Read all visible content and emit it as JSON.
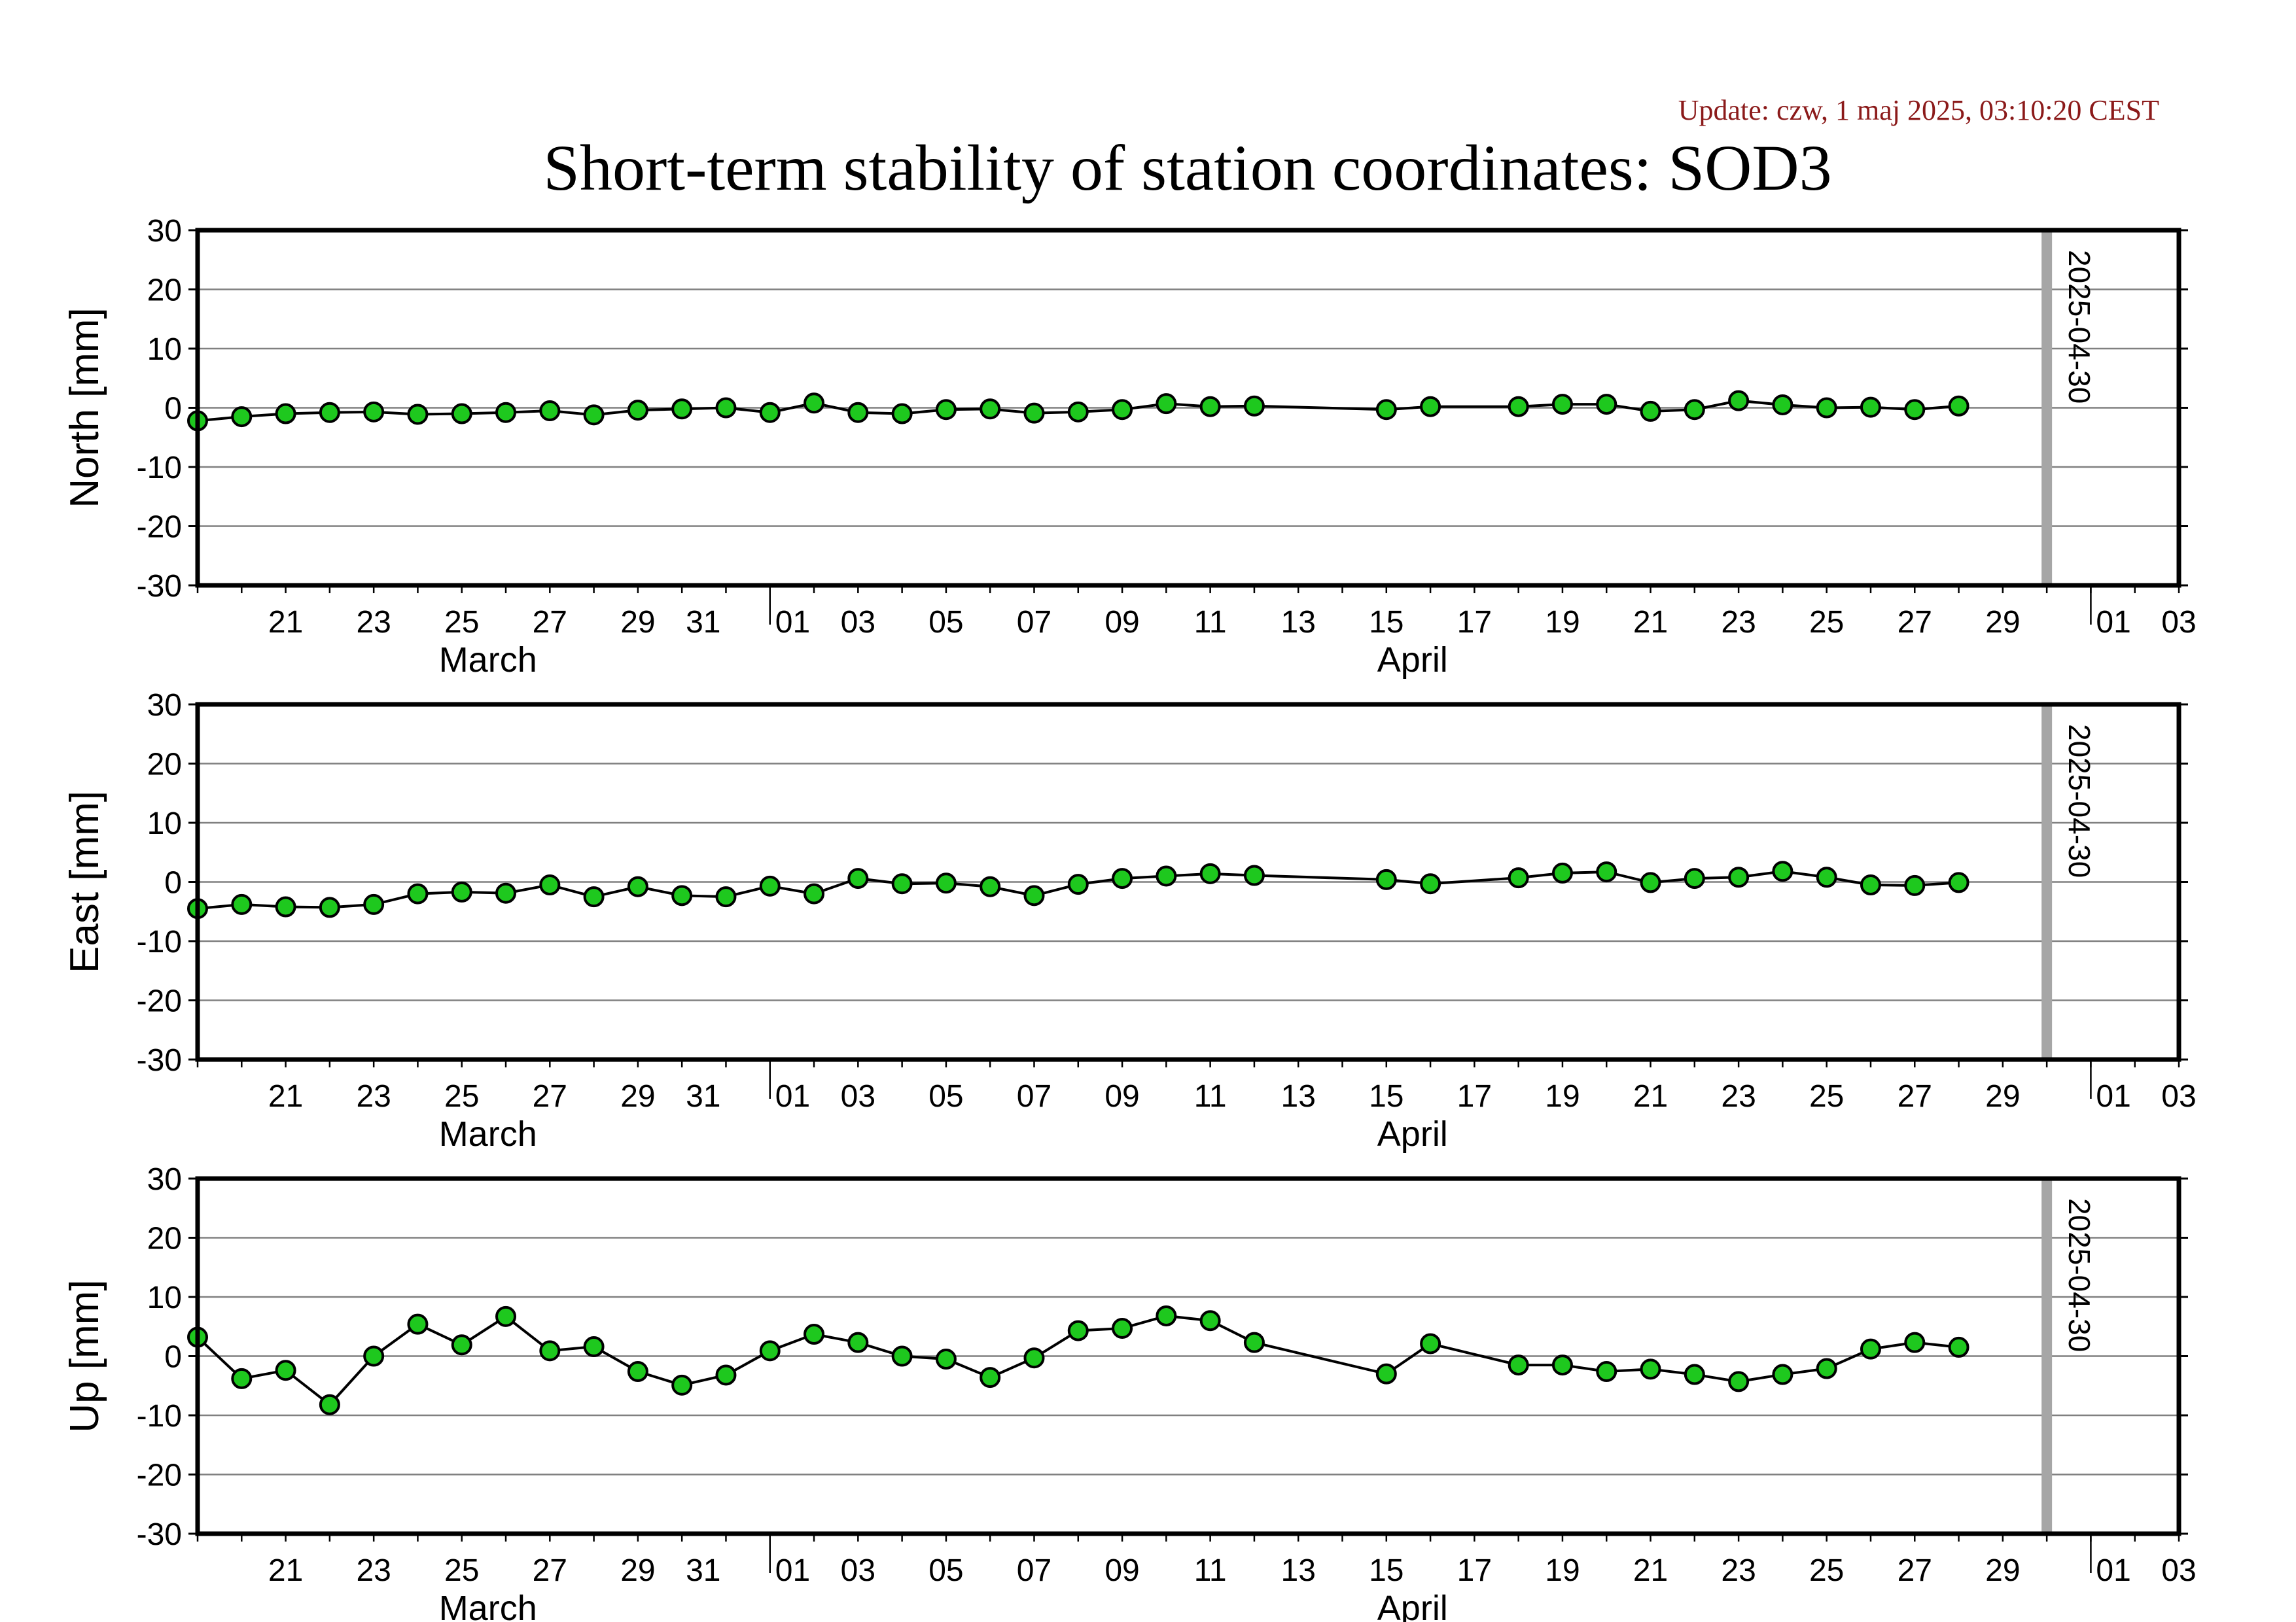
{
  "update_text": "Update: czw, 1 maj 2025, 03:10:20 CEST",
  "title": "Short-term stability of station coordinates: SOD3",
  "colors": {
    "marker_fill": "#1ec81e",
    "line": "#000000",
    "grid": "#808080",
    "marker_line": "#aaaaaa",
    "update_text": "#8b1a1a"
  },
  "chart_data": [
    {
      "type": "line",
      "ylabel": "North [mm]",
      "ylim": [
        -30,
        30
      ],
      "yticks": [
        -30,
        -20,
        -10,
        0,
        10,
        20,
        30
      ],
      "xlim": [
        "2025-03-19",
        "2025-05-03"
      ],
      "marker_label": "2025-04-30",
      "marker_date": "2025-04-30",
      "x": [
        "2025-03-19",
        "2025-03-20",
        "2025-03-21",
        "2025-03-22",
        "2025-03-23",
        "2025-03-24",
        "2025-03-25",
        "2025-03-26",
        "2025-03-27",
        "2025-03-28",
        "2025-03-29",
        "2025-03-30",
        "2025-03-31",
        "2025-04-01",
        "2025-04-02",
        "2025-04-03",
        "2025-04-04",
        "2025-04-05",
        "2025-04-06",
        "2025-04-07",
        "2025-04-08",
        "2025-04-09",
        "2025-04-10",
        "2025-04-11",
        "2025-04-12",
        "2025-04-15",
        "2025-04-16",
        "2025-04-18",
        "2025-04-19",
        "2025-04-20",
        "2025-04-21",
        "2025-04-22",
        "2025-04-23",
        "2025-04-24",
        "2025-04-25",
        "2025-04-26",
        "2025-04-27",
        "2025-04-28"
      ],
      "y": [
        -2.2,
        -1.5,
        -1.0,
        -0.8,
        -0.7,
        -1.1,
        -1.0,
        -0.8,
        -0.5,
        -1.2,
        -0.4,
        -0.2,
        0.0,
        -0.8,
        0.8,
        -0.8,
        -1.0,
        -0.3,
        -0.2,
        -0.9,
        -0.7,
        -0.3,
        0.7,
        0.2,
        0.3,
        -0.3,
        0.2,
        0.2,
        0.6,
        0.6,
        -0.6,
        -0.3,
        1.2,
        0.5,
        0.0,
        0.1,
        -0.3,
        0.3
      ]
    },
    {
      "type": "line",
      "ylabel": "East [mm]",
      "ylim": [
        -30,
        30
      ],
      "yticks": [
        -30,
        -20,
        -10,
        0,
        10,
        20,
        30
      ],
      "xlim": [
        "2025-03-19",
        "2025-05-03"
      ],
      "marker_label": "2025-04-30",
      "marker_date": "2025-04-30",
      "x": [
        "2025-03-19",
        "2025-03-20",
        "2025-03-21",
        "2025-03-22",
        "2025-03-23",
        "2025-03-24",
        "2025-03-25",
        "2025-03-26",
        "2025-03-27",
        "2025-03-28",
        "2025-03-29",
        "2025-03-30",
        "2025-03-31",
        "2025-04-01",
        "2025-04-02",
        "2025-04-03",
        "2025-04-04",
        "2025-04-05",
        "2025-04-06",
        "2025-04-07",
        "2025-04-08",
        "2025-04-09",
        "2025-04-10",
        "2025-04-11",
        "2025-04-12",
        "2025-04-15",
        "2025-04-16",
        "2025-04-18",
        "2025-04-19",
        "2025-04-20",
        "2025-04-21",
        "2025-04-22",
        "2025-04-23",
        "2025-04-24",
        "2025-04-25",
        "2025-04-26",
        "2025-04-27",
        "2025-04-28"
      ],
      "y": [
        -4.5,
        -3.8,
        -4.2,
        -4.3,
        -3.8,
        -2.0,
        -1.7,
        -1.9,
        -0.5,
        -2.5,
        -0.8,
        -2.3,
        -2.5,
        -0.7,
        -2.0,
        0.6,
        -0.3,
        -0.2,
        -0.8,
        -2.3,
        -0.4,
        0.6,
        1.0,
        1.4,
        1.1,
        0.4,
        -0.3,
        0.7,
        1.5,
        1.7,
        -0.1,
        0.6,
        0.8,
        1.8,
        0.8,
        -0.5,
        -0.6,
        -0.1
      ]
    },
    {
      "type": "line",
      "ylabel": "Up [mm]",
      "ylim": [
        -30,
        30
      ],
      "yticks": [
        -30,
        -20,
        -10,
        0,
        10,
        20,
        30
      ],
      "xlim": [
        "2025-03-19",
        "2025-05-03"
      ],
      "marker_label": "2025-04-30",
      "marker_date": "2025-04-30",
      "x": [
        "2025-03-19",
        "2025-03-20",
        "2025-03-21",
        "2025-03-22",
        "2025-03-23",
        "2025-03-24",
        "2025-03-25",
        "2025-03-26",
        "2025-03-27",
        "2025-03-28",
        "2025-03-29",
        "2025-03-30",
        "2025-03-31",
        "2025-04-01",
        "2025-04-02",
        "2025-04-03",
        "2025-04-04",
        "2025-04-05",
        "2025-04-06",
        "2025-04-07",
        "2025-04-08",
        "2025-04-09",
        "2025-04-10",
        "2025-04-11",
        "2025-04-12",
        "2025-04-15",
        "2025-04-16",
        "2025-04-18",
        "2025-04-19",
        "2025-04-20",
        "2025-04-21",
        "2025-04-22",
        "2025-04-23",
        "2025-04-24",
        "2025-04-25",
        "2025-04-26",
        "2025-04-27",
        "2025-04-28"
      ],
      "y": [
        3.2,
        -3.8,
        -2.4,
        -8.2,
        0.0,
        5.4,
        1.9,
        6.7,
        0.9,
        1.6,
        -2.6,
        -4.9,
        -3.2,
        0.9,
        3.7,
        2.3,
        0.0,
        -0.5,
        -3.6,
        -0.3,
        4.3,
        4.7,
        6.8,
        6.0,
        2.3,
        -3.0,
        2.1,
        -1.5,
        -1.5,
        -2.6,
        -2.2,
        -3.1,
        -4.3,
        -3.1,
        -2.1,
        1.2,
        2.3,
        1.5
      ]
    }
  ],
  "x_axis": {
    "tick_labels": [
      {
        "date": "2025-03-21",
        "label": "21"
      },
      {
        "date": "2025-03-23",
        "label": "23"
      },
      {
        "date": "2025-03-25",
        "label": "25"
      },
      {
        "date": "2025-03-27",
        "label": "27"
      },
      {
        "date": "2025-03-29",
        "label": "29"
      },
      {
        "date": "2025-03-31",
        "label": "31"
      },
      {
        "date": "2025-04-01",
        "label": "01"
      },
      {
        "date": "2025-04-03",
        "label": "03"
      },
      {
        "date": "2025-04-05",
        "label": "05"
      },
      {
        "date": "2025-04-07",
        "label": "07"
      },
      {
        "date": "2025-04-09",
        "label": "09"
      },
      {
        "date": "2025-04-11",
        "label": "11"
      },
      {
        "date": "2025-04-13",
        "label": "13"
      },
      {
        "date": "2025-04-15",
        "label": "15"
      },
      {
        "date": "2025-04-17",
        "label": "17"
      },
      {
        "date": "2025-04-19",
        "label": "19"
      },
      {
        "date": "2025-04-21",
        "label": "21"
      },
      {
        "date": "2025-04-23",
        "label": "23"
      },
      {
        "date": "2025-04-25",
        "label": "25"
      },
      {
        "date": "2025-04-27",
        "label": "27"
      },
      {
        "date": "2025-04-29",
        "label": "29"
      },
      {
        "date": "2025-05-01",
        "label": "01"
      },
      {
        "date": "2025-05-03",
        "label": "03"
      }
    ],
    "month_labels": [
      {
        "date": "2025-03-25",
        "label": "March"
      },
      {
        "date": "2025-04-15",
        "label": "April"
      }
    ],
    "month_boundaries": [
      "2025-04-01",
      "2025-05-01"
    ]
  }
}
